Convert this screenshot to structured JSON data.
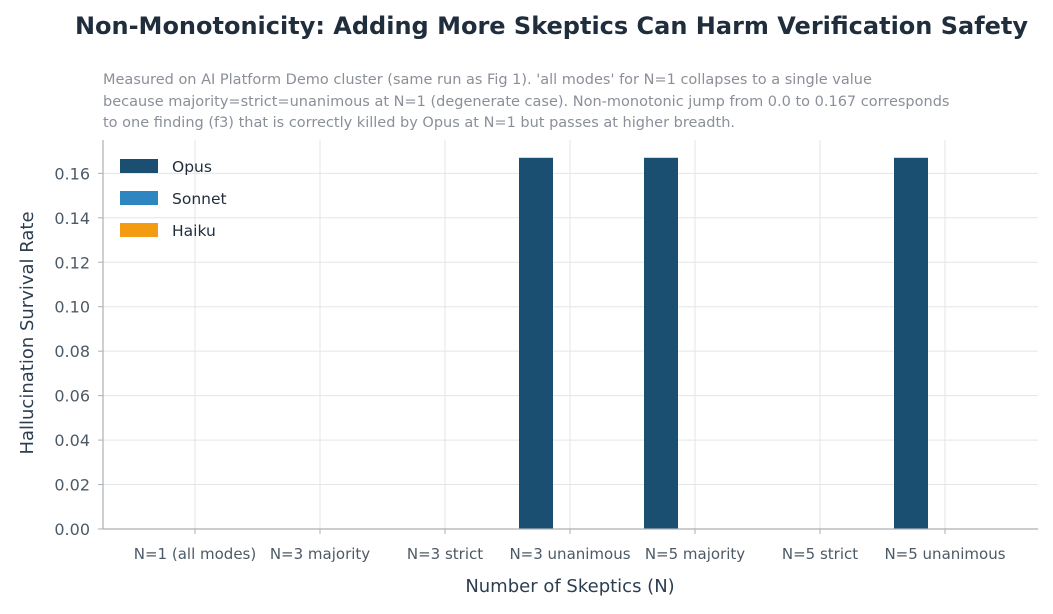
{
  "chart_data": {
    "type": "bar",
    "title": "Non-Monotonicity: Adding More Skeptics Can Harm Verification Safety",
    "subtitle_lines": [
      "Measured on AI Platform Demo cluster (same run as Fig 1). 'all modes' for N=1 collapses to a single value",
      "because majority=strict=unanimous at N=1 (degenerate case). Non-monotonic jump from 0.0 to 0.167 corresponds",
      "to one finding (f3) that is correctly killed by Opus at N=1 but passes at higher breadth."
    ],
    "xlabel": "Number of Skeptics (N)",
    "ylabel": "Hallucination Survival Rate",
    "categories": [
      "N=1 (all modes)",
      "N=3 majority",
      "N=3 strict",
      "N=3 unanimous",
      "N=5 majority",
      "N=5 strict",
      "N=5 unanimous"
    ],
    "series": [
      {
        "name": "Opus",
        "color": "#1b4f72",
        "values": [
          0.0,
          0.0,
          0.0,
          0.167,
          0.167,
          0.0,
          0.167
        ]
      },
      {
        "name": "Sonnet",
        "color": "#2e86c1",
        "values": [
          0.0,
          0.0,
          0.0,
          0.0,
          0.0,
          0.0,
          0.0
        ]
      },
      {
        "name": "Haiku",
        "color": "#f39c12",
        "values": [
          0.0,
          0.0,
          0.0,
          0.0,
          0.0,
          0.0,
          0.0
        ]
      }
    ],
    "ylim": [
      0,
      0.175
    ],
    "yticks": [
      "0.00",
      "0.02",
      "0.04",
      "0.06",
      "0.08",
      "0.10",
      "0.12",
      "0.14",
      "0.16"
    ],
    "grid": true,
    "legend_position": "top-left"
  }
}
